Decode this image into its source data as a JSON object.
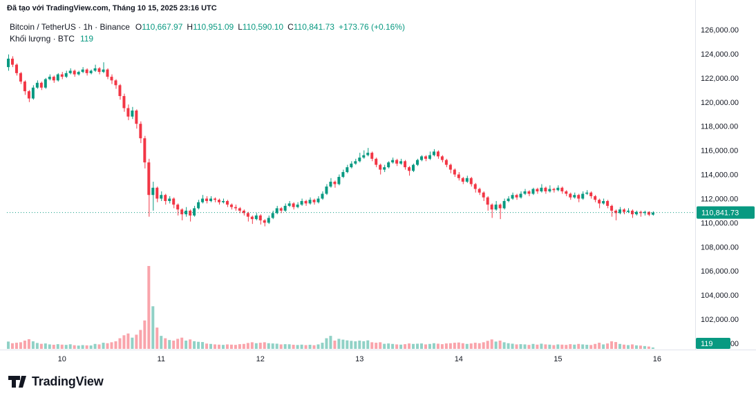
{
  "attribution": "Đã tạo với TradingView.com, Tháng 10 15, 2025 23:16 UTC",
  "logo_text": "TradingView",
  "legend": {
    "symbol": "Bitcoin / TetherUS · 1h · Binance",
    "o_label": "O",
    "o": "110,667.97",
    "h_label": "H",
    "h": "110,951.09",
    "l_label": "L",
    "l": "110,590.10",
    "c_label": "C",
    "c": "110,841.73",
    "change": "+173.76 (+0.16%)",
    "volume_title": "Khối lượng · BTC",
    "volume_value": "119"
  },
  "colors": {
    "up": "#089981",
    "down": "#f23645",
    "text": "#131722",
    "axis_line": "#e0e3eb",
    "badge_text": "#ffffff"
  },
  "chart_data": {
    "type": "candlestick",
    "title": "Bitcoin / TetherUS",
    "exchange": "Binance",
    "interval": "1h",
    "legend_ohlc": {
      "open": 110667.97,
      "high": 110951.09,
      "low": 110590.1,
      "close": 110841.73,
      "change": 173.76,
      "change_pct": 0.16,
      "volume_btc": 119
    },
    "ylim": [
      100000,
      126000
    ],
    "y_tick_step": 2000,
    "y_ticks": [
      "126,000.00",
      "124,000.00",
      "122,000.00",
      "120,000.00",
      "118,000.00",
      "116,000.00",
      "114,000.00",
      "112,000.00",
      "110,000.00",
      "108,000.00",
      "106,000.00",
      "104,000.00",
      "102,000.00",
      "100,000.00"
    ],
    "x_ticks": [
      {
        "text": "10",
        "i": 13
      },
      {
        "text": "11",
        "i": 37
      },
      {
        "text": "12",
        "i": 61
      },
      {
        "text": "13",
        "i": 85
      },
      {
        "text": "14",
        "i": 109
      },
      {
        "text": "15",
        "i": 133
      },
      {
        "text": "16",
        "i": 157
      }
    ],
    "last_price": 110841.73,
    "last_price_label": "110,841.73",
    "last_volume_label": "119",
    "candles": [
      [
        122900,
        123950,
        122600,
        123600,
        620
      ],
      [
        123600,
        123800,
        122900,
        123100,
        480
      ],
      [
        123100,
        123200,
        122200,
        122400,
        520
      ],
      [
        122400,
        122500,
        121500,
        121700,
        560
      ],
      [
        121700,
        121800,
        120600,
        120900,
        700
      ],
      [
        120900,
        121000,
        120000,
        120300,
        820
      ],
      [
        120300,
        121400,
        120200,
        121200,
        640
      ],
      [
        121200,
        121800,
        121100,
        121600,
        500
      ],
      [
        121600,
        121700,
        121000,
        121200,
        430
      ],
      [
        121200,
        122000,
        121100,
        121900,
        460
      ],
      [
        121900,
        122300,
        121800,
        122100,
        380
      ],
      [
        122100,
        122200,
        121600,
        121800,
        350
      ],
      [
        121800,
        122400,
        121700,
        122300,
        400
      ],
      [
        122300,
        122500,
        121900,
        122100,
        360
      ],
      [
        122100,
        122600,
        122000,
        122400,
        340
      ],
      [
        122400,
        122800,
        122300,
        122600,
        390
      ],
      [
        122600,
        122700,
        122100,
        122300,
        310
      ],
      [
        122300,
        122600,
        122200,
        122500,
        280
      ],
      [
        122500,
        122900,
        122400,
        122700,
        320
      ],
      [
        122700,
        122800,
        122200,
        122400,
        300
      ],
      [
        122400,
        122700,
        122300,
        122600,
        290
      ],
      [
        122600,
        123100,
        122500,
        122800,
        420
      ],
      [
        122800,
        122900,
        122300,
        122500,
        380
      ],
      [
        122500,
        123300,
        122400,
        122700,
        520
      ],
      [
        122700,
        122800,
        121900,
        122100,
        480
      ],
      [
        122100,
        122300,
        121500,
        121800,
        560
      ],
      [
        121800,
        121900,
        121100,
        121400,
        640
      ],
      [
        121400,
        121500,
        120200,
        120500,
        900
      ],
      [
        120500,
        120700,
        119200,
        119500,
        1150
      ],
      [
        119500,
        119800,
        118500,
        118800,
        1300
      ],
      [
        118800,
        119600,
        118600,
        119300,
        950
      ],
      [
        119300,
        119400,
        117800,
        118200,
        1200
      ],
      [
        118200,
        118400,
        116600,
        117000,
        1600
      ],
      [
        117000,
        117200,
        114500,
        115000,
        2400
      ],
      [
        115000,
        115300,
        110500,
        112300,
        7000
      ],
      [
        112300,
        113400,
        111000,
        112900,
        3600
      ],
      [
        112900,
        113000,
        111700,
        112000,
        1800
      ],
      [
        112000,
        112600,
        111800,
        112300,
        1100
      ],
      [
        112300,
        112400,
        111500,
        111800,
        900
      ],
      [
        111800,
        112200,
        111600,
        112000,
        750
      ],
      [
        112000,
        112100,
        111200,
        111500,
        700
      ],
      [
        111500,
        111600,
        110600,
        111100,
        850
      ],
      [
        111100,
        111200,
        110200,
        110700,
        950
      ],
      [
        110700,
        111300,
        110500,
        111000,
        700
      ],
      [
        111000,
        111100,
        110100,
        110600,
        800
      ],
      [
        110600,
        111400,
        110500,
        111200,
        650
      ],
      [
        111200,
        111900,
        111100,
        111700,
        600
      ],
      [
        111700,
        112300,
        111600,
        112000,
        580
      ],
      [
        112000,
        112200,
        111600,
        111800,
        450
      ],
      [
        111800,
        112200,
        111700,
        112000,
        420
      ],
      [
        112000,
        112100,
        111700,
        111900,
        380
      ],
      [
        111900,
        112000,
        111500,
        111700,
        360
      ],
      [
        111700,
        112000,
        111600,
        111800,
        340
      ],
      [
        111800,
        111900,
        111300,
        111500,
        380
      ],
      [
        111500,
        111600,
        111100,
        111300,
        360
      ],
      [
        111300,
        111500,
        111000,
        111200,
        340
      ],
      [
        111200,
        111300,
        110800,
        111000,
        400
      ],
      [
        111000,
        111100,
        110600,
        110800,
        420
      ],
      [
        110800,
        110900,
        110100,
        110500,
        500
      ],
      [
        110500,
        110600,
        109900,
        110300,
        560
      ],
      [
        110300,
        110800,
        110200,
        110600,
        480
      ],
      [
        110600,
        110700,
        109850,
        110200,
        520
      ],
      [
        110200,
        110300,
        109700,
        110000,
        560
      ],
      [
        110000,
        110600,
        109900,
        110400,
        480
      ],
      [
        110400,
        111000,
        110300,
        110800,
        460
      ],
      [
        110800,
        111400,
        110700,
        111200,
        440
      ],
      [
        111200,
        111300,
        110800,
        111000,
        380
      ],
      [
        111000,
        111600,
        110900,
        111400,
        400
      ],
      [
        111400,
        111800,
        111300,
        111600,
        390
      ],
      [
        111600,
        111700,
        111100,
        111300,
        350
      ],
      [
        111300,
        111700,
        111200,
        111500,
        330
      ],
      [
        111500,
        112000,
        111400,
        111800,
        360
      ],
      [
        111800,
        111900,
        111400,
        111600,
        320
      ],
      [
        111600,
        112100,
        111500,
        111900,
        350
      ],
      [
        111900,
        112000,
        111500,
        111700,
        310
      ],
      [
        111700,
        112200,
        111600,
        112000,
        380
      ],
      [
        112000,
        112600,
        111900,
        112400,
        520
      ],
      [
        112400,
        113200,
        112300,
        113000,
        900
      ],
      [
        113000,
        113700,
        112900,
        113400,
        1100
      ],
      [
        113400,
        113500,
        112900,
        113200,
        700
      ],
      [
        113200,
        114000,
        113100,
        113800,
        850
      ],
      [
        113800,
        114400,
        113700,
        114200,
        780
      ],
      [
        114200,
        114800,
        114100,
        114600,
        720
      ],
      [
        114600,
        115100,
        114500,
        114900,
        680
      ],
      [
        114900,
        115300,
        114800,
        115100,
        640
      ],
      [
        115100,
        115800,
        115000,
        115400,
        700
      ],
      [
        115400,
        116000,
        115300,
        115600,
        650
      ],
      [
        115600,
        116200,
        115500,
        115800,
        720
      ],
      [
        115800,
        115900,
        115100,
        115300,
        560
      ],
      [
        115300,
        115400,
        114600,
        114800,
        520
      ],
      [
        114800,
        114900,
        114000,
        114400,
        560
      ],
      [
        114400,
        114800,
        114200,
        114600,
        430
      ],
      [
        114600,
        115100,
        114500,
        115000,
        460
      ],
      [
        115000,
        115400,
        114900,
        115200,
        420
      ],
      [
        115200,
        115300,
        114700,
        114900,
        380
      ],
      [
        114900,
        115300,
        114800,
        115100,
        360
      ],
      [
        115100,
        115200,
        114400,
        114600,
        400
      ],
      [
        114600,
        114700,
        113900,
        114300,
        460
      ],
      [
        114300,
        114900,
        114200,
        114800,
        420
      ],
      [
        114800,
        115300,
        114700,
        115200,
        440
      ],
      [
        115200,
        115600,
        115100,
        115500,
        460
      ],
      [
        115500,
        115600,
        115100,
        115300,
        380
      ],
      [
        115300,
        115900,
        115200,
        115600,
        420
      ],
      [
        115600,
        116100,
        115500,
        115900,
        480
      ],
      [
        115900,
        116000,
        115300,
        115500,
        440
      ],
      [
        115500,
        115600,
        115000,
        115200,
        400
      ],
      [
        115200,
        115300,
        114600,
        114800,
        460
      ],
      [
        114800,
        114900,
        114100,
        114400,
        480
      ],
      [
        114400,
        114500,
        113800,
        114000,
        520
      ],
      [
        114000,
        114200,
        113500,
        113700,
        540
      ],
      [
        113700,
        113800,
        113200,
        113400,
        480
      ],
      [
        113400,
        113900,
        113300,
        113700,
        420
      ],
      [
        113700,
        113800,
        113000,
        113200,
        460
      ],
      [
        113200,
        113300,
        112500,
        112800,
        520
      ],
      [
        112800,
        112900,
        112300,
        112500,
        480
      ],
      [
        112500,
        112600,
        111800,
        112100,
        560
      ],
      [
        112100,
        112200,
        111000,
        111500,
        680
      ],
      [
        111500,
        111600,
        110400,
        111100,
        800
      ],
      [
        111100,
        111800,
        111000,
        111500,
        620
      ],
      [
        111500,
        111600,
        110300,
        111200,
        700
      ],
      [
        111200,
        112000,
        111100,
        111800,
        560
      ],
      [
        111800,
        112200,
        111700,
        112000,
        480
      ],
      [
        112000,
        112500,
        111900,
        112300,
        440
      ],
      [
        112300,
        112400,
        111900,
        112100,
        380
      ],
      [
        112100,
        112600,
        112000,
        112400,
        400
      ],
      [
        112400,
        112800,
        112300,
        112600,
        380
      ],
      [
        112600,
        112700,
        112200,
        112400,
        340
      ],
      [
        112400,
        112900,
        112300,
        112800,
        420
      ],
      [
        112800,
        112900,
        112400,
        112600,
        360
      ],
      [
        112600,
        113200,
        112500,
        112900,
        440
      ],
      [
        112900,
        113000,
        112400,
        112600,
        380
      ],
      [
        112600,
        113100,
        112500,
        112800,
        360
      ],
      [
        112800,
        112900,
        112500,
        112700,
        320
      ],
      [
        112700,
        113100,
        112600,
        112900,
        380
      ],
      [
        112900,
        113000,
        112400,
        112600,
        360
      ],
      [
        112600,
        112700,
        112200,
        112400,
        340
      ],
      [
        112400,
        112500,
        111900,
        112100,
        400
      ],
      [
        112100,
        112500,
        112000,
        112300,
        360
      ],
      [
        112300,
        112400,
        111700,
        112000,
        420
      ],
      [
        112000,
        112600,
        111900,
        112400,
        380
      ],
      [
        112400,
        112700,
        112300,
        112500,
        350
      ],
      [
        112500,
        112600,
        112000,
        112200,
        330
      ],
      [
        112200,
        112300,
        111700,
        111900,
        420
      ],
      [
        111900,
        112000,
        111200,
        111600,
        520
      ],
      [
        111600,
        112000,
        111500,
        111800,
        380
      ],
      [
        111800,
        111900,
        111200,
        111400,
        460
      ],
      [
        111400,
        111500,
        110500,
        111000,
        640
      ],
      [
        111000,
        111100,
        110200,
        110800,
        580
      ],
      [
        110800,
        111300,
        110700,
        111100,
        420
      ],
      [
        111100,
        111200,
        110700,
        110900,
        360
      ],
      [
        110900,
        111200,
        110800,
        111000,
        320
      ],
      [
        111000,
        111100,
        110400,
        110700,
        380
      ],
      [
        110700,
        111000,
        110600,
        110900,
        300
      ],
      [
        110900,
        111000,
        110500,
        110800,
        280
      ],
      [
        110800,
        111000,
        110600,
        110900,
        240
      ],
      [
        110900,
        110950,
        110550,
        110670,
        200
      ],
      [
        110667.97,
        110951.09,
        110590.1,
        110841.73,
        119
      ]
    ]
  }
}
